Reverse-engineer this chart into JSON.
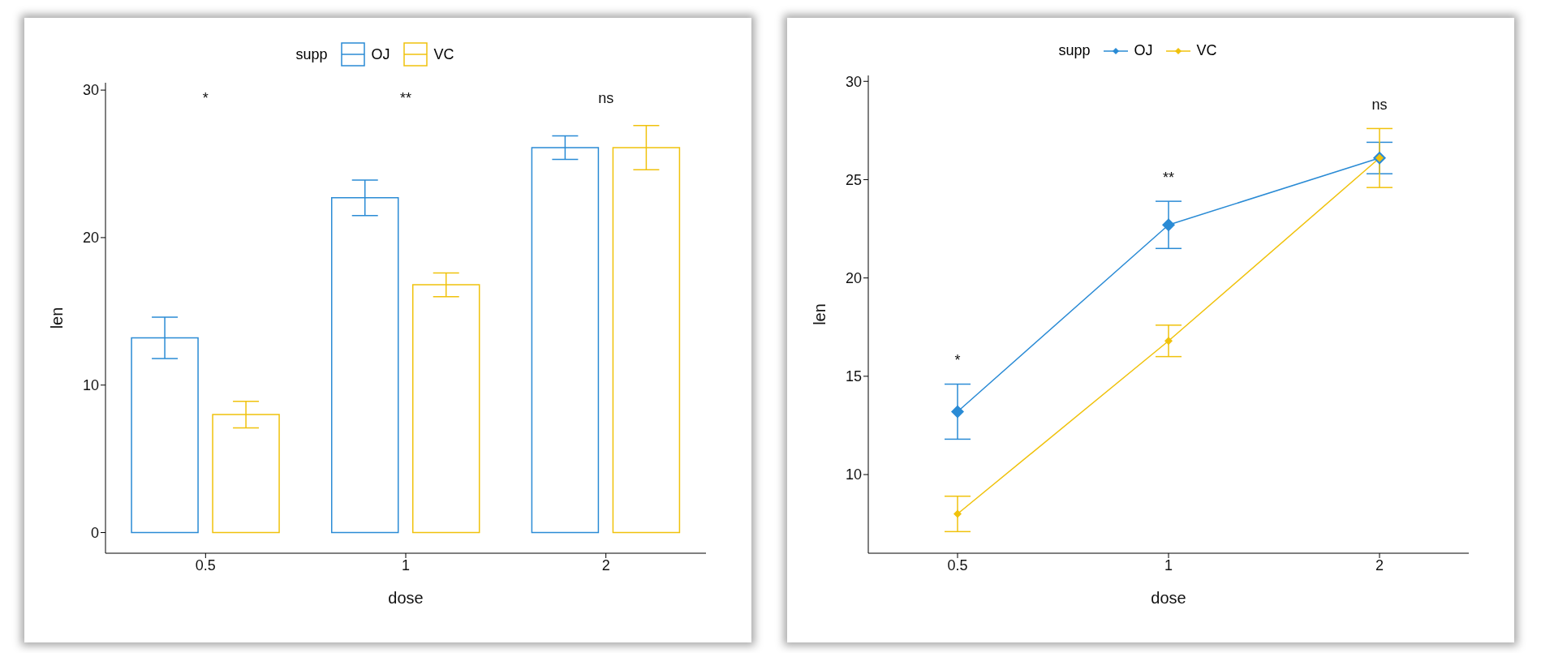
{
  "chart_data": [
    {
      "type": "bar",
      "categories": [
        "0.5",
        "1",
        "2"
      ],
      "xlabel": "dose",
      "ylabel": "len",
      "legend_title": "supp",
      "legend": "top",
      "ylim": [
        -1.4,
        30.5
      ],
      "yticks": [
        0,
        10,
        20,
        30
      ],
      "series": [
        {
          "name": "OJ",
          "color": "#2a8bd5",
          "values": [
            13.2,
            22.7,
            26.1
          ],
          "errors": [
            1.4,
            1.2,
            0.8
          ]
        },
        {
          "name": "VC",
          "color": "#f0c20c",
          "values": [
            8.0,
            16.8,
            26.1
          ],
          "errors": [
            0.9,
            0.8,
            1.5
          ]
        }
      ],
      "annotations": [
        "*",
        "**",
        "ns"
      ]
    },
    {
      "type": "line",
      "marker": "diamond",
      "categories": [
        "0.5",
        "1",
        "2"
      ],
      "xlabel": "dose",
      "ylabel": "len",
      "legend_title": "supp",
      "legend": "top",
      "ylim": [
        6,
        30.3
      ],
      "yticks": [
        10,
        15,
        20,
        25,
        30
      ],
      "series": [
        {
          "name": "OJ",
          "color": "#2a8bd5",
          "values": [
            13.2,
            22.7,
            26.1
          ],
          "errors": [
            1.4,
            1.2,
            0.8
          ]
        },
        {
          "name": "VC",
          "color": "#f0c20c",
          "values": [
            8.0,
            16.8,
            26.1
          ],
          "errors": [
            0.9,
            0.8,
            1.5
          ]
        }
      ],
      "annotations": [
        "*",
        "**",
        "ns"
      ]
    }
  ]
}
